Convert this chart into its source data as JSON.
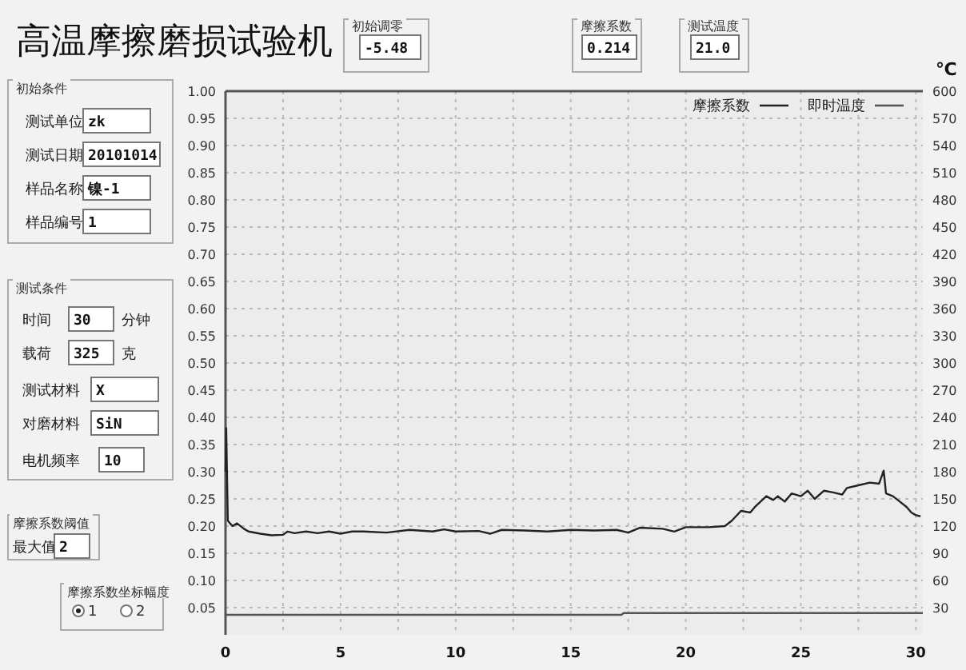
{
  "chart_data": {
    "type": "line",
    "title": "高温摩擦磨损试验机",
    "y2label": "℃",
    "xlim": [
      0,
      30.3
    ],
    "xticks": [
      0,
      {
        "value": 2.5,
        "label": null
      },
      5,
      {
        "value": 7.5,
        "label": null
      },
      10,
      {
        "value": 12.5,
        "label": null
      },
      15,
      {
        "value": 17.5,
        "label": null
      },
      20,
      {
        "value": 22.5,
        "label": null
      },
      25,
      {
        "value": 27.5,
        "label": null
      },
      30
    ],
    "ylim": [
      0,
      1
    ],
    "yticks": [
      {
        "value": 0.05,
        "label": "0.05"
      },
      {
        "value": 0.1,
        "label": "0.10"
      },
      {
        "value": 0.15,
        "label": "0.15"
      },
      {
        "value": 0.2,
        "label": "0.20"
      },
      {
        "value": 0.25,
        "label": "0.25"
      },
      {
        "value": 0.3,
        "label": "0.30"
      },
      {
        "value": 0.35,
        "label": "0.35"
      },
      {
        "value": 0.4,
        "label": "0.40"
      },
      {
        "value": 0.45,
        "label": "0.45"
      },
      {
        "value": 0.5,
        "label": "0.50"
      },
      {
        "value": 0.55,
        "label": "0.55"
      },
      {
        "value": 0.6,
        "label": "0.60"
      },
      {
        "value": 0.65,
        "label": "0.65"
      },
      {
        "value": 0.7,
        "label": "0.70"
      },
      {
        "value": 0.75,
        "label": "0.75"
      },
      {
        "value": 0.8,
        "label": "0.80"
      },
      {
        "value": 0.85,
        "label": "0.85"
      },
      {
        "value": 0.9,
        "label": "0.90"
      },
      {
        "value": 0.95,
        "label": "0.95"
      },
      {
        "value": 1.0,
        "label": "1.00"
      }
    ],
    "y2lim": [
      0,
      600
    ],
    "y2ticks": [
      30,
      60,
      90,
      120,
      150,
      180,
      210,
      240,
      270,
      300,
      330,
      360,
      390,
      420,
      450,
      480,
      510,
      540,
      570,
      600
    ],
    "grid": true,
    "legend": "top right",
    "line_style": "solid",
    "marker": "none",
    "series": [
      {
        "name": "摩擦系数",
        "color": "#222222",
        "x": [
          0,
          0.03,
          0.1,
          0.3,
          0.5,
          0.8,
          1,
          1.5,
          2,
          2.5,
          2.7,
          3,
          3.5,
          4,
          4.5,
          5,
          5.5,
          6,
          7,
          8,
          9,
          9.5,
          10,
          11,
          11.5,
          12,
          13,
          14,
          15,
          16,
          17,
          17.5,
          18,
          19,
          19.5,
          20,
          21,
          21.7,
          22,
          22.4,
          22.8,
          23,
          23.5,
          23.8,
          24,
          24.3,
          24.6,
          25,
          25.3,
          25.6,
          26,
          26.4,
          26.8,
          27,
          27.5,
          28,
          28.4,
          28.6,
          28.7,
          29,
          29.3,
          29.6,
          29.8,
          30,
          30.2
        ],
        "values": [
          0.3,
          0.38,
          0.21,
          0.2,
          0.205,
          0.195,
          0.19,
          0.186,
          0.183,
          0.184,
          0.19,
          0.187,
          0.19,
          0.187,
          0.19,
          0.186,
          0.19,
          0.19,
          0.188,
          0.193,
          0.19,
          0.194,
          0.19,
          0.191,
          0.186,
          0.193,
          0.192,
          0.19,
          0.193,
          0.192,
          0.193,
          0.188,
          0.197,
          0.195,
          0.19,
          0.198,
          0.198,
          0.2,
          0.21,
          0.228,
          0.225,
          0.235,
          0.255,
          0.248,
          0.255,
          0.245,
          0.26,
          0.255,
          0.265,
          0.25,
          0.265,
          0.262,
          0.258,
          0.27,
          0.275,
          0.28,
          0.278,
          0.302,
          0.26,
          0.255,
          0.245,
          0.235,
          0.225,
          0.22,
          0.218
        ]
      },
      {
        "name": "即时温度",
        "color": "#555555",
        "axis": "y2",
        "x": [
          0,
          17.2,
          17.3,
          30.3
        ],
        "values": [
          22,
          22,
          24,
          24
        ]
      }
    ],
    "annotations": [
      "初始条件",
      "测试单位",
      "zk",
      "测试日期",
      "20101014",
      "样品名称",
      "镍-1",
      "样品编号",
      "1",
      "测试条件",
      "时间",
      "30",
      "分钟",
      "载荷",
      "325",
      "克",
      "测试材料",
      "X",
      "对磨材料",
      "SiN",
      "电机频率",
      "10",
      "摩擦系数阈值",
      "最大值",
      "2",
      "摩擦系数坐标幅度",
      "1",
      "2",
      "初始调零",
      "-5.48",
      "摩擦系数",
      "0.214",
      "测试温度",
      "21.0"
    ]
  }
}
